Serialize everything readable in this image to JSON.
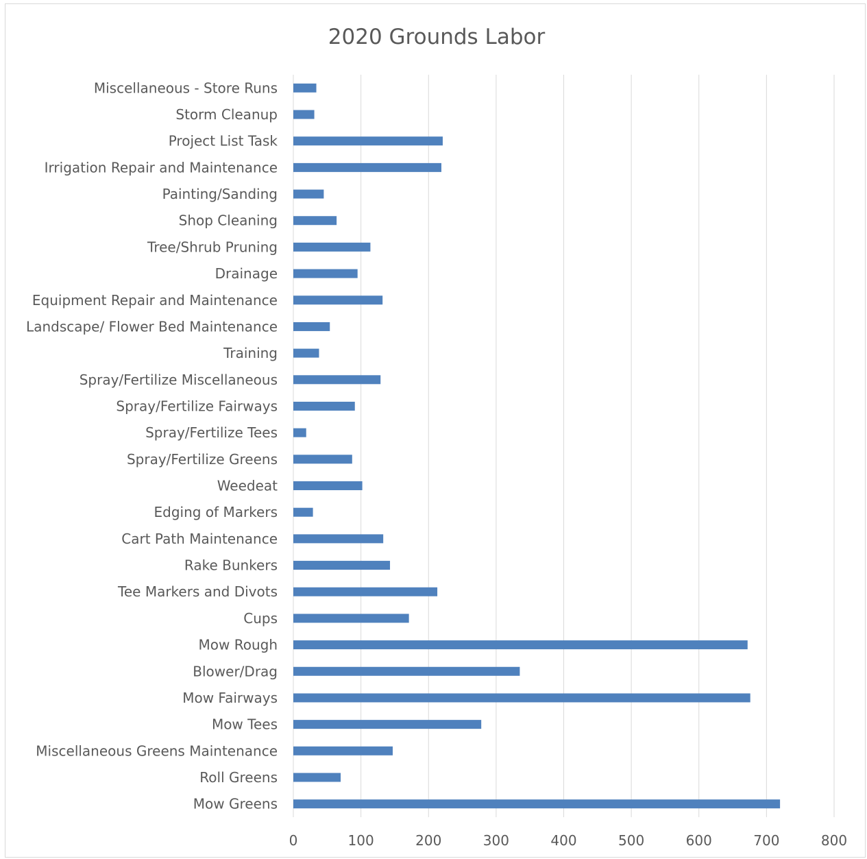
{
  "chart_data": {
    "type": "bar",
    "orientation": "horizontal",
    "title": "2020 Grounds Labor",
    "xlabel": "",
    "ylabel": "",
    "xlim": [
      0,
      800
    ],
    "ticks": [
      0,
      100,
      200,
      300,
      400,
      500,
      600,
      700,
      800
    ],
    "grid": true,
    "legend": "none",
    "bar_color": "#4f81bd",
    "categories": [
      "Miscellaneous - Store Runs",
      "Storm Cleanup",
      "Project List Task",
      "Irrigation Repair and Maintenance",
      "Painting/Sanding",
      "Shop Cleaning",
      "Tree/Shrub Pruning",
      "Drainage",
      "Equipment Repair and Maintenance",
      "Landscape/ Flower Bed Maintenance",
      "Training",
      "Spray/Fertilize Miscellaneous",
      "Spray/Fertilize Fairways",
      "Spray/Fertilize Tees",
      "Spray/Fertilize Greens",
      "Weedeat",
      "Edging of Markers",
      "Cart Path Maintenance",
      "Rake Bunkers",
      "Tee Markers and Divots",
      "Cups",
      "Mow Rough",
      "Blower/Drag",
      "Mow Fairways",
      "Mow Tees",
      "Miscellaneous Greens Maintenance",
      "Roll Greens",
      "Mow Greens"
    ],
    "values": [
      34,
      31,
      221,
      219,
      45,
      64,
      114,
      95,
      132,
      54,
      38,
      129,
      91,
      19,
      87,
      102,
      29,
      133,
      143,
      213,
      171,
      672,
      335,
      676,
      278,
      147,
      70,
      720
    ]
  }
}
